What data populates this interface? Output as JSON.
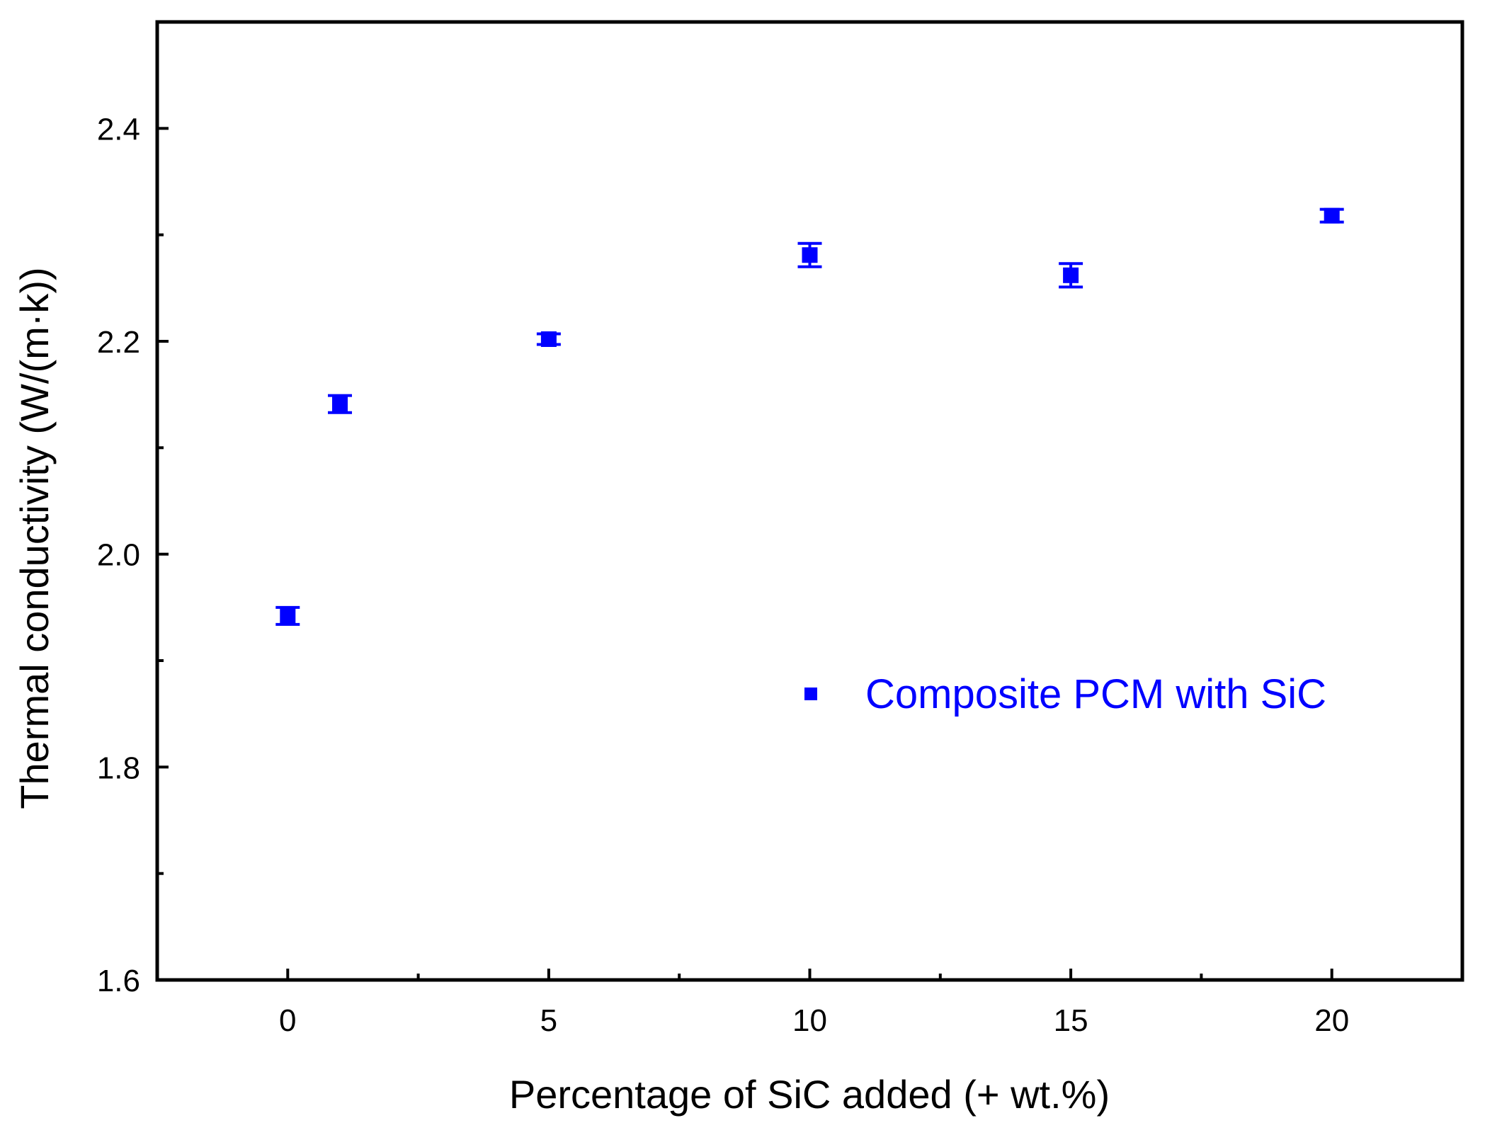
{
  "chart_data": {
    "type": "scatter",
    "title": "",
    "xlabel": "Percentage of SiC added (+ wt.%)",
    "ylabel": "Thermal conductivity (W/(m·k))",
    "xlim": [
      -2.5,
      22.5
    ],
    "ylim": [
      1.6,
      2.5
    ],
    "x_major_ticks": [
      0,
      5,
      10,
      15,
      20
    ],
    "x_minor_ticks": [
      2.5,
      7.5,
      12.5,
      17.5
    ],
    "x_tick_labels": [
      "0",
      "5",
      "10",
      "15",
      "20"
    ],
    "y_major_ticks": [
      1.6,
      1.8,
      2.0,
      2.2,
      2.4
    ],
    "y_minor_ticks": [
      1.7,
      1.9,
      2.1,
      2.3
    ],
    "y_tick_labels": [
      "1.6",
      "1.8",
      "2.0",
      "2.2",
      "2.4"
    ],
    "grid": false,
    "legend_position": "center-right",
    "series": [
      {
        "name": "Composite PCM with SiC",
        "color": "#0000ff",
        "marker": "square",
        "points": [
          {
            "x": 0,
            "y": 1.942,
            "err": 0.008
          },
          {
            "x": 1,
            "y": 2.141,
            "err": 0.008
          },
          {
            "x": 5,
            "y": 2.202,
            "err": 0.005
          },
          {
            "x": 10,
            "y": 2.281,
            "err": 0.011
          },
          {
            "x": 15,
            "y": 2.262,
            "err": 0.011
          },
          {
            "x": 20,
            "y": 2.318,
            "err": 0.006
          }
        ]
      }
    ]
  }
}
